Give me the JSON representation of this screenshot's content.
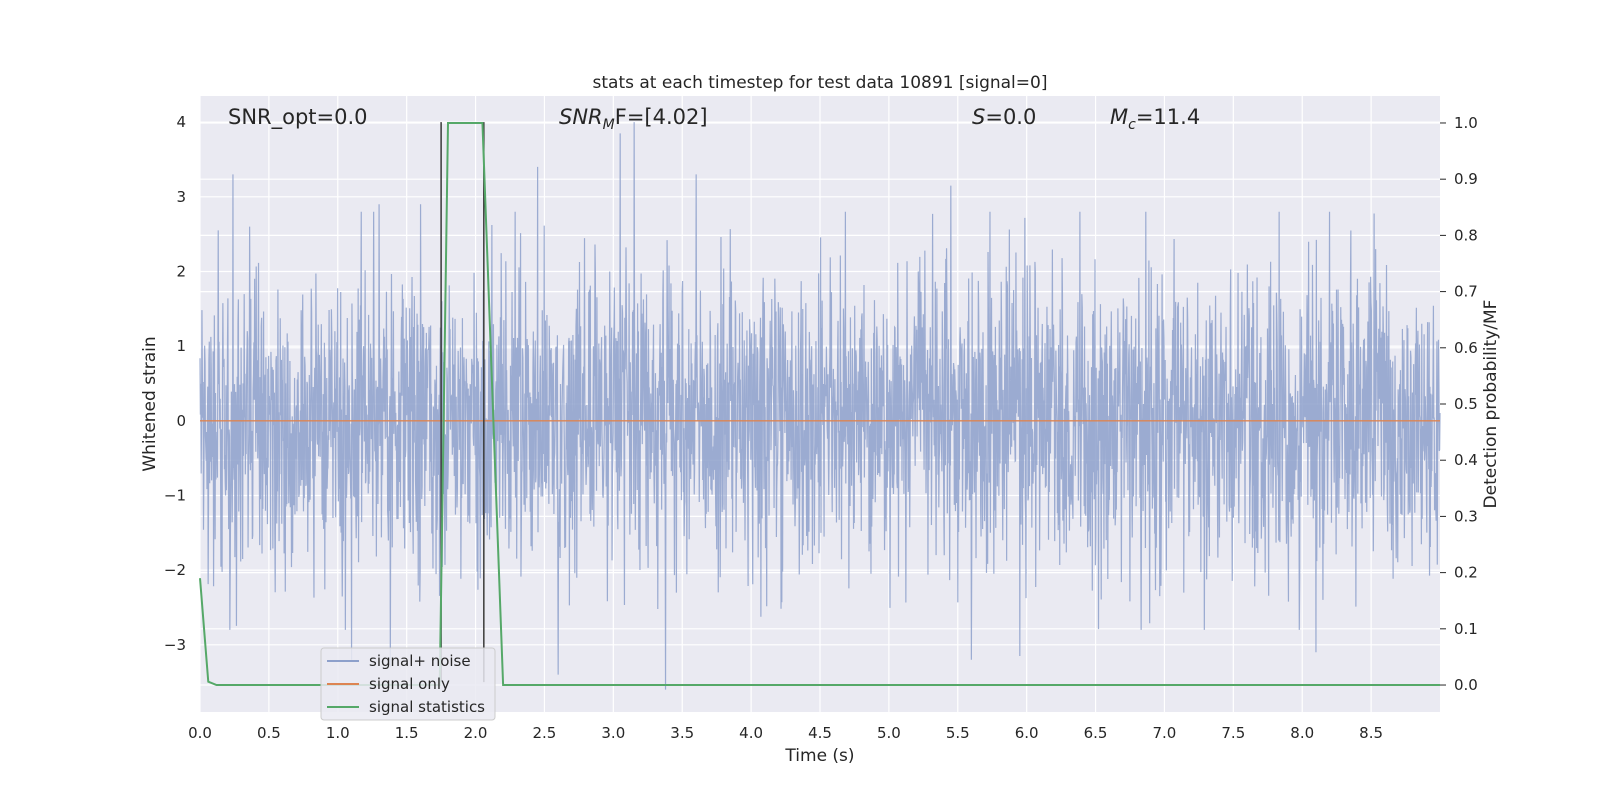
{
  "chart_data": {
    "type": "line",
    "title": "stats at each timestep for test data 10891 [signal=0]",
    "xlabel": "Time (s)",
    "ylabel": "Whitened strain",
    "y2label": "Detection probability/MF",
    "xlim": [
      0.0,
      9.0
    ],
    "ylim": [
      -3.9,
      4.35
    ],
    "y2lim": [
      -0.048,
      1.048
    ],
    "grid": true,
    "legend_placement": "lower-left",
    "x_ticks": [
      0.0,
      0.5,
      1.0,
      1.5,
      2.0,
      2.5,
      3.0,
      3.5,
      4.0,
      4.5,
      5.0,
      5.5,
      6.0,
      6.5,
      7.0,
      7.5,
      8.0,
      8.5
    ],
    "x_tick_labels": [
      "0.0",
      "0.5",
      "1.0",
      "1.5",
      "2.0",
      "2.5",
      "3.0",
      "3.5",
      "4.0",
      "4.5",
      "5.0",
      "5.5",
      "6.0",
      "6.5",
      "7.0",
      "7.5",
      "8.0",
      "8.5"
    ],
    "y_ticks": [
      -3,
      -2,
      -1,
      0,
      1,
      2,
      3,
      4
    ],
    "y_tick_labels": [
      "−3",
      "−2",
      "−1",
      "0",
      "1",
      "2",
      "3",
      "4"
    ],
    "y2_ticks": [
      0.0,
      0.1,
      0.2,
      0.3,
      0.4,
      0.5,
      0.6,
      0.7,
      0.8,
      0.9,
      1.0
    ],
    "y2_tick_labels": [
      "0.0",
      "0.1",
      "0.2",
      "0.3",
      "0.4",
      "0.5",
      "0.6",
      "0.7",
      "0.8",
      "0.9",
      "1.0"
    ],
    "annotations": {
      "snr_opt": "SNR_opt=0.0",
      "snr_mf_sym": "SNR",
      "snr_mf_sub": "M",
      "snr_mf_rest": "F=[4.02]",
      "s_sym": "S",
      "s_rest": "=0.0",
      "mc_sym": "M",
      "mc_sub": "c",
      "mc_rest": "=11.4"
    },
    "series": [
      {
        "name": "signal+ noise",
        "color": "#8da0cb",
        "axis": "left",
        "style": "dense noise trace",
        "peak_values": [
          {
            "x": 0.24,
            "y": 3.3
          },
          {
            "x": 0.36,
            "y": 2.6
          },
          {
            "x": 1.3,
            "y": 2.9
          },
          {
            "x": 1.6,
            "y": 2.9
          },
          {
            "x": 2.45,
            "y": 3.4
          },
          {
            "x": 3.05,
            "y": 3.85
          },
          {
            "x": 3.15,
            "y": 4.0
          },
          {
            "x": 3.6,
            "y": 3.3
          },
          {
            "x": 5.45,
            "y": 3.15
          },
          {
            "x": 1.1,
            "y": -3.2
          },
          {
            "x": 1.38,
            "y": -3.3
          },
          {
            "x": 2.6,
            "y": -3.4
          },
          {
            "x": 3.38,
            "y": -3.6
          },
          {
            "x": 5.6,
            "y": -3.2
          },
          {
            "x": 5.95,
            "y": -3.15
          },
          {
            "x": 8.1,
            "y": -3.1
          }
        ]
      },
      {
        "name": "signal only",
        "color": "#dd8452",
        "axis": "left",
        "x": [
          0.0,
          9.0
        ],
        "y": [
          0.0,
          0.0
        ]
      },
      {
        "name": "signal statistics",
        "color": "#55a868",
        "axis": "right",
        "x": [
          0.0,
          0.06,
          0.12,
          1.74,
          1.8,
          2.05,
          2.2,
          9.0
        ],
        "y": [
          0.19,
          0.006,
          0.0,
          0.0,
          1.0,
          1.0,
          0.0,
          0.0
        ]
      }
    ],
    "vertical_markers": {
      "color": "#3a3a3a",
      "x": [
        1.75,
        2.06
      ],
      "y_top": 4.0,
      "y_bottom": -3.5
    }
  }
}
